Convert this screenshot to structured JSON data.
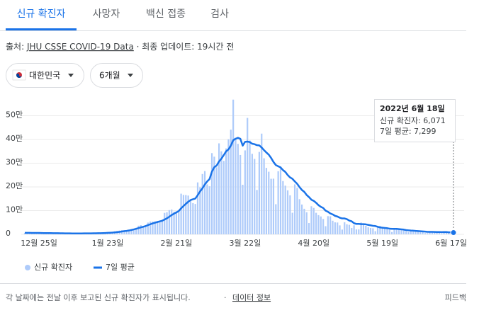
{
  "tabs": [
    "신규 확진자",
    "사망자",
    "백신 접종",
    "검사"
  ],
  "source": {
    "prefix": "출처:",
    "link": "JHU CSSE COVID-19 Data",
    "suffix": "· 최종 업데이트: 19시간 전"
  },
  "filters": {
    "region": "대한민국",
    "period": "6개월"
  },
  "chart_data": {
    "type": "bar-line",
    "categories": [
      null,
      null,
      null,
      null,
      null,
      null,
      "12월 25일",
      null,
      null,
      null,
      null,
      null,
      null,
      null,
      null,
      null,
      null,
      null,
      null,
      null,
      null,
      null,
      null,
      null,
      null,
      null,
      null,
      null,
      null,
      null,
      null,
      null,
      null,
      null,
      null,
      "1월 23일",
      null,
      null,
      null,
      null,
      null,
      null,
      null,
      null,
      null,
      null,
      null,
      null,
      null,
      null,
      null,
      null,
      null,
      null,
      null,
      null,
      null,
      null,
      null,
      null,
      null,
      null,
      null,
      null,
      "2월 21일",
      null,
      null,
      null,
      null,
      null,
      null,
      null,
      null,
      null,
      null,
      null,
      null,
      null,
      null,
      null,
      null,
      null,
      null,
      null,
      null,
      null,
      null,
      null,
      null,
      null,
      null,
      null,
      null,
      "3월 22일",
      null,
      null,
      null,
      null,
      null,
      null,
      null,
      null,
      null,
      null,
      null,
      null,
      null,
      null,
      null,
      null,
      null,
      null,
      null,
      null,
      null,
      null,
      null,
      null,
      null,
      null,
      null,
      null,
      "4월 20일",
      null,
      null,
      null,
      null,
      null,
      null,
      null,
      null,
      null,
      null,
      null,
      null,
      null,
      null,
      null,
      null,
      null,
      null,
      null,
      null,
      null,
      null,
      null,
      null,
      null,
      null,
      null,
      null,
      "5월 19일",
      null,
      null,
      null,
      null,
      null,
      null,
      null,
      null,
      null,
      null,
      null,
      null,
      null,
      null,
      null,
      null,
      null,
      null,
      null,
      null,
      null,
      null,
      null,
      null,
      null,
      null,
      null,
      null,
      "6월 17일",
      null
    ],
    "series": [
      {
        "name": "신규 확진자",
        "type": "bar",
        "color": "#aecbfa",
        "values": [
          6200,
          5300,
          7400,
          7000,
          6900,
          6200,
          5800,
          4200,
          3800,
          5400,
          5000,
          5000,
          4900,
          4400,
          3800,
          3100,
          4200,
          4400,
          4100,
          3700,
          3500,
          3300,
          3000,
          4300,
          4500,
          4500,
          4500,
          4400,
          4200,
          3800,
          4100,
          5800,
          6600,
          6800,
          7000,
          7600,
          7500,
          8500,
          13000,
          14500,
          16100,
          17500,
          17500,
          17000,
          18300,
          20200,
          22900,
          27400,
          36300,
          38600,
          35200,
          36700,
          49500,
          54100,
          53900,
          54900,
          56400,
          53900,
          57100,
          90400,
          93100,
          102200,
          104800,
          95300,
          95600,
          99600,
          171400,
          166200,
          165800,
          163500,
          139600,
          131700,
          128000,
          219000,
          198800,
          254300,
          266800,
          210700,
          202700,
          342400,
          327500,
          282900,
          383600,
          350100,
          309700,
          362300,
          400700,
          441400,
          568000,
          407000,
          381500,
          334500,
          209100,
          353900,
          490800,
          395500,
          339500,
          318100,
          187100,
          347500,
          424600,
          320700,
          280200,
          264000,
          234300,
          234800,
          127000,
          266100,
          286200,
          224800,
          205300,
          185500,
          164400,
          90900,
          210700,
          195400,
          148400,
          125800,
          107900,
          93000,
          47700,
          118500,
          111300,
          90800,
          81000,
          75400,
          64700,
          34400,
          76700,
          75900,
          57400,
          50500,
          49900,
          37700,
          20100,
          51100,
          42300,
          40000,
          26700,
          38000,
          20600,
          20600,
          49900,
          43900,
          35900,
          29600,
          26700,
          25400,
          13300,
          29500,
          35900,
          27000,
          23900,
          25100,
          19300,
          9900,
          23900,
          26000,
          23000,
          17200,
          16600,
          13000,
          10100,
          18100,
          13300,
          12500,
          12000,
          9800,
          9800,
          5000,
          4900,
          13300,
          12100,
          10300,
          9500,
          8400,
          3800,
          6000,
          12000,
          10000,
          9400,
          6071
        ]
      },
      {
        "name": "7일 평균",
        "type": "line",
        "color": "#1a73e8",
        "values": [
          6400,
          6300,
          6200,
          6100,
          6000,
          5900,
          5800,
          5600,
          5400,
          5300,
          5200,
          5100,
          5000,
          4900,
          4700,
          4500,
          4300,
          4200,
          4100,
          4000,
          3900,
          3800,
          3800,
          3800,
          3900,
          4000,
          4100,
          4200,
          4200,
          4300,
          4400,
          4700,
          5000,
          5300,
          5700,
          6200,
          6700,
          7300,
          8200,
          9300,
          10600,
          12000,
          13400,
          14600,
          16300,
          18300,
          20700,
          23300,
          26300,
          29200,
          31800,
          35000,
          38800,
          42500,
          46000,
          49100,
          51900,
          54600,
          57300,
          62400,
          67500,
          74300,
          81400,
          87100,
          92500,
          98200,
          109700,
          119400,
          128600,
          137400,
          144500,
          147900,
          151000,
          165000,
          181000,
          194000,
          210000,
          223000,
          233000,
          264000,
          283000,
          290000,
          307000,
          319000,
          334000,
          350000,
          358000,
          374000,
          397000,
          403000,
          407000,
          403000,
          374000,
          390000,
          391000,
          389000,
          382000,
          380000,
          376000,
          375000,
          366000,
          355000,
          345000,
          336000,
          322000,
          305000,
          292000,
          287000,
          282000,
          271000,
          263000,
          250000,
          240000,
          234000,
          223000,
          213000,
          199000,
          187000,
          179000,
          166000,
          157000,
          146000,
          141000,
          133000,
          123000,
          116000,
          111000,
          100000,
          95000,
          88000,
          84000,
          78000,
          75000,
          70000,
          67000,
          67000,
          64000,
          58000,
          55000,
          47000,
          44000,
          44000,
          43000,
          43000,
          42000,
          40000,
          38000,
          36000,
          35000,
          32000,
          29000,
          28000,
          27000,
          26000,
          24000,
          23000,
          23000,
          23000,
          22000,
          21000,
          20000,
          18000,
          17000,
          16000,
          15500,
          14500,
          13800,
          13000,
          12400,
          11700,
          10500,
          10500,
          10500,
          10200,
          9800,
          9700,
          9500,
          9600,
          9600,
          8600,
          8400,
          7299
        ]
      }
    ],
    "ylim": [
      0,
      600000
    ],
    "yticks": [
      0,
      {
        "value": 100000,
        "label": "10만"
      },
      {
        "value": 200000,
        "label": "20만"
      },
      {
        "value": 300000,
        "label": "30만"
      },
      {
        "value": 400000,
        "label": "40만"
      },
      {
        "value": 500000,
        "label": "50만"
      }
    ],
    "grid": true,
    "tooltip": {
      "title": "2022년 6월 18일",
      "lines": [
        "신규 확진자: 6,071",
        "7일 평균: 7,299"
      ]
    }
  },
  "footer": {
    "note": "각 날짜에는 전날 이후 보고된 신규 확진자가 표시됩니다.",
    "link": "데이터 정보",
    "feedback": "피드백"
  }
}
